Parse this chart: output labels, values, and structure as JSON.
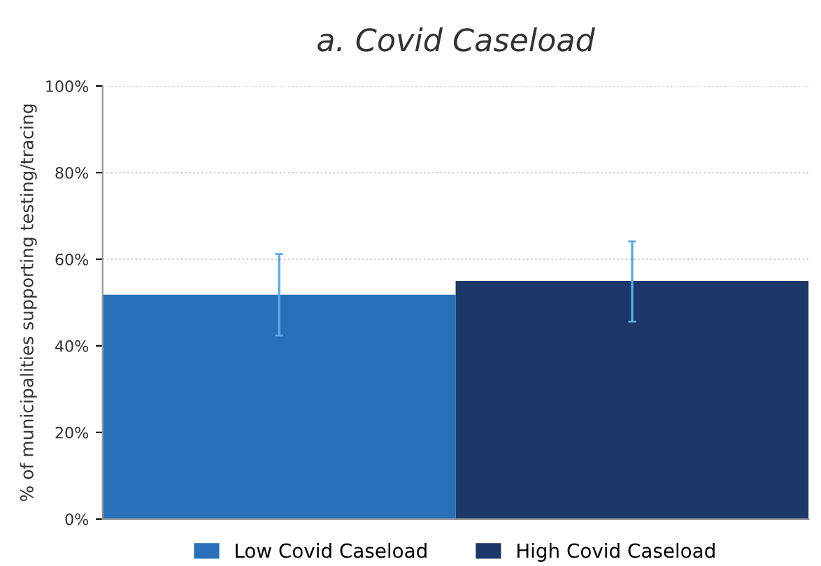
{
  "chart_data": {
    "type": "bar",
    "title": "a. Covid Caseload",
    "ylabel": "% of municipalities supporting testing/tracing",
    "categories": [
      null
    ],
    "series": [
      {
        "name": "Low Covid Caseload",
        "color": "#2870b9",
        "values": [
          51.8
        ],
        "errors": [
          [
            42.4,
            61.2
          ]
        ]
      },
      {
        "name": "High Covid Caseload",
        "color": "#1c3868",
        "values": [
          55.0
        ],
        "errors": [
          [
            45.6,
            64.1
          ]
        ]
      }
    ],
    "ylim": [
      0,
      100
    ],
    "yticks": [
      {
        "value": 0,
        "label": "0%"
      },
      {
        "value": 20,
        "label": "20%"
      },
      {
        "value": 40,
        "label": "40%"
      },
      {
        "value": 60,
        "label": "60%"
      },
      {
        "value": 80,
        "label": "80%"
      },
      {
        "value": 100,
        "label": "100%"
      }
    ],
    "grid": "y",
    "legend": "bottom"
  }
}
